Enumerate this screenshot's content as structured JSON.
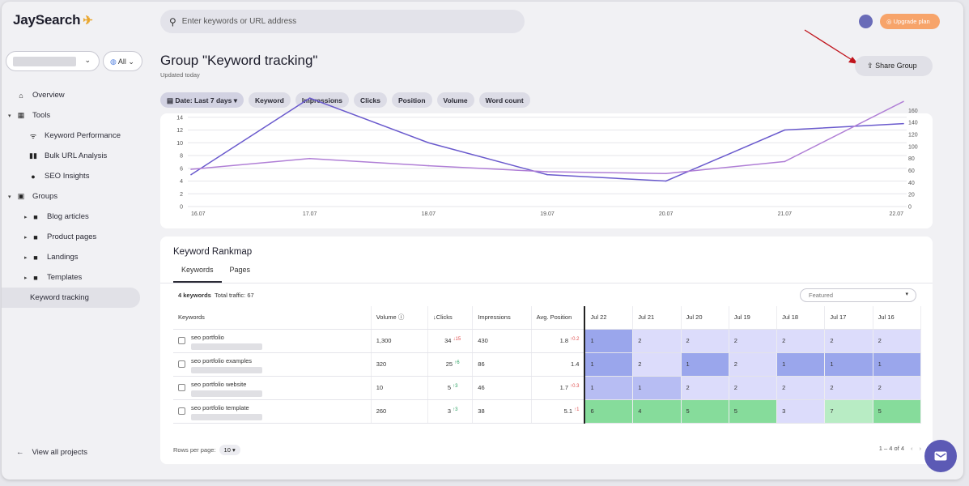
{
  "app": {
    "logo": "JaySearch"
  },
  "sidebar": {
    "all_label": "All",
    "items": [
      {
        "label": "Overview",
        "icon": "home-icon"
      },
      {
        "label": "Tools",
        "icon": "grid-icon"
      },
      {
        "label": "Keyword Performance",
        "icon": "wifi-icon"
      },
      {
        "label": "Bulk URL Analysis",
        "icon": "bars-icon"
      },
      {
        "label": "SEO Insights",
        "icon": "info-icon"
      },
      {
        "label": "Groups",
        "icon": "group-icon"
      },
      {
        "label": "Blog articles",
        "icon": "folder-icon"
      },
      {
        "label": "Product pages",
        "icon": "folder-icon"
      },
      {
        "label": "Landings",
        "icon": "folder-icon"
      },
      {
        "label": "Templates",
        "icon": "folder-icon"
      },
      {
        "label": "Keyword tracking",
        "icon": ""
      }
    ],
    "view_all": "View all projects"
  },
  "header": {
    "search_placeholder": "Enter keywords or URL address",
    "upgrade_label": "Upgrade plan",
    "title": "Group \"Keyword tracking\"",
    "updated": "Updated today",
    "share_label": "Share Group"
  },
  "filters": [
    "Date: Last 7 days",
    "Keyword",
    "Impressions",
    "Clicks",
    "Position",
    "Volume",
    "Word count"
  ],
  "chart_data": {
    "type": "line",
    "categories": [
      "16.07",
      "17.07",
      "18.07",
      "19.07",
      "20.07",
      "21.07",
      "22.07"
    ],
    "y_left_ticks": [
      "0",
      "2",
      "4",
      "6",
      "8",
      "10",
      "12",
      "14"
    ],
    "y_right_ticks": [
      "0",
      "20",
      "40",
      "60",
      "80",
      "100",
      "120",
      "140",
      "160"
    ],
    "ylim_left": [
      0,
      16
    ],
    "ylim_right": [
      0,
      170
    ],
    "series": [
      {
        "axis": "left",
        "color": "#6a5acd",
        "values": [
          5,
          17,
          10,
          5,
          4,
          12,
          13
        ]
      },
      {
        "axis": "right",
        "color": "#b07fd6",
        "values": [
          62,
          80,
          68,
          58,
          55,
          75,
          175
        ]
      }
    ],
    "grid": true
  },
  "rankmap": {
    "title": "Keyword Rankmap",
    "tabs": [
      "Keywords",
      "Pages"
    ],
    "count": "4 keywords",
    "traffic": "Total traffic: 67",
    "sort": "Featured",
    "columns": [
      "Keywords",
      "Volume",
      "Clicks",
      "Impressions",
      "Avg. Position",
      "Jul 22",
      "Jul 21",
      "Jul 20",
      "Jul 19",
      "Jul 18",
      "Jul 17",
      "Jul 16"
    ],
    "rows": [
      {
        "keyword": "seo portfolio",
        "volume": "1,300",
        "clicks": "34",
        "clicks_delta": "↓15",
        "impressions": "430",
        "position": "1.8",
        "position_delta": "↑0.2",
        "ranks": [
          "1",
          "2",
          "2",
          "2",
          "2",
          "2",
          "2"
        ]
      },
      {
        "keyword": "seo portfolio examples",
        "volume": "320",
        "clicks": "25",
        "clicks_delta": "↑6",
        "impressions": "86",
        "position": "1.4",
        "position_delta": "",
        "ranks": [
          "1",
          "2",
          "1",
          "2",
          "1",
          "1",
          "1"
        ]
      },
      {
        "keyword": "seo portfolio website",
        "volume": "10",
        "clicks": "5",
        "clicks_delta": "↑3",
        "impressions": "46",
        "position": "1.7",
        "position_delta": "↑0.3",
        "ranks": [
          "1",
          "1",
          "2",
          "2",
          "2",
          "2",
          "2"
        ]
      },
      {
        "keyword": "seo portfolio template",
        "volume": "260",
        "clicks": "3",
        "clicks_delta": "↑3",
        "impressions": "38",
        "position": "5.1",
        "position_delta": "↑1",
        "ranks": [
          "6",
          "4",
          "5",
          "5",
          "3",
          "7",
          "5"
        ]
      }
    ],
    "rows_per_page_label": "Rows per page:",
    "rows_per_page": "10",
    "pagination": "1 – 4 of 4"
  }
}
